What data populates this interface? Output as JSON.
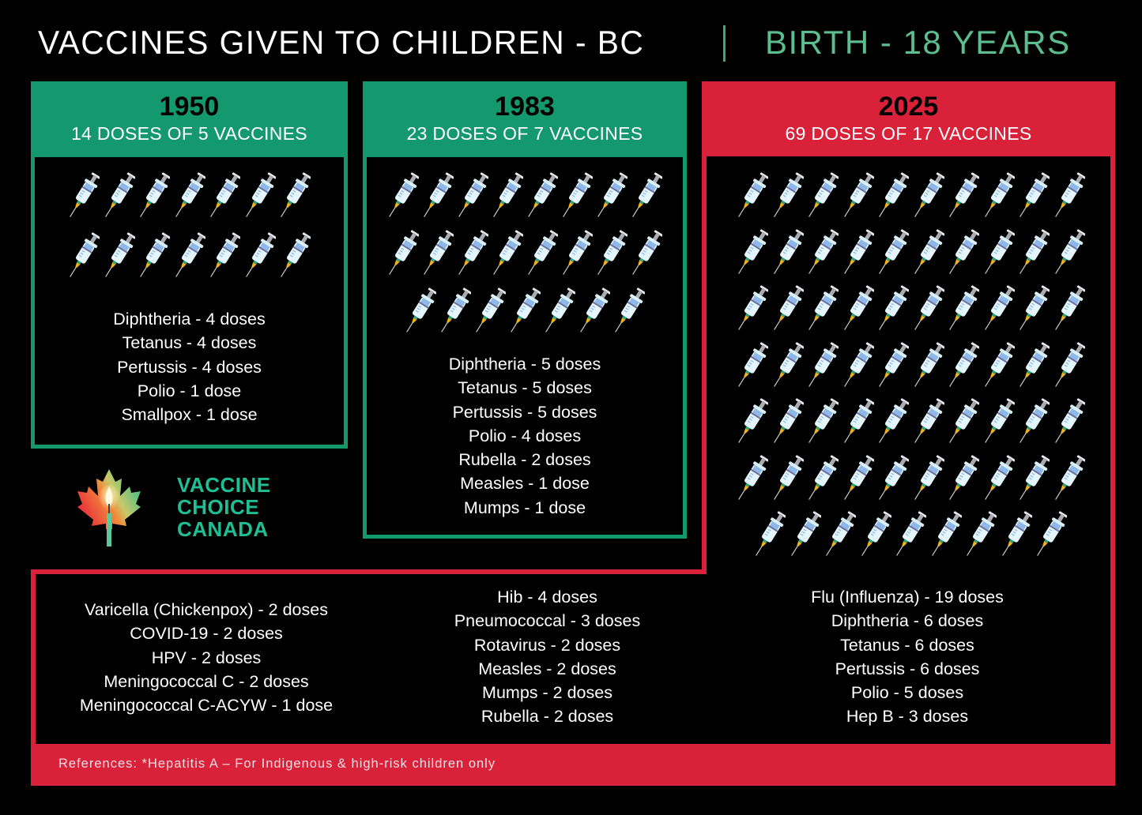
{
  "header": {
    "title": "VACCINES GIVEN TO CHILDREN - BC",
    "separator": "|",
    "subtitle": "BIRTH - 18 YEARS"
  },
  "colors": {
    "green": "#14996f",
    "red": "#d9223a",
    "subtitle_green": "#5cbd8e",
    "logo_green": "#1fbf94",
    "background": "#000000"
  },
  "chart_data": {
    "type": "table",
    "title": "VACCINES GIVEN TO CHILDREN - BC | BIRTH - 18 YEARS",
    "categories": [
      "1950",
      "1983",
      "2025"
    ],
    "series": [
      {
        "name": "Total doses",
        "values": [
          14,
          23,
          69
        ]
      },
      {
        "name": "Number of vaccines",
        "values": [
          5,
          7,
          17
        ]
      }
    ],
    "breakdown": {
      "1950": [
        {
          "vaccine": "Diphtheria",
          "doses": 4
        },
        {
          "vaccine": "Tetanus",
          "doses": 4
        },
        {
          "vaccine": "Pertussis",
          "doses": 4
        },
        {
          "vaccine": "Polio",
          "doses": 1
        },
        {
          "vaccine": "Smallpox",
          "doses": 1
        }
      ],
      "1983": [
        {
          "vaccine": "Diphtheria",
          "doses": 5
        },
        {
          "vaccine": "Tetanus",
          "doses": 5
        },
        {
          "vaccine": "Pertussis",
          "doses": 5
        },
        {
          "vaccine": "Polio",
          "doses": 4
        },
        {
          "vaccine": "Rubella",
          "doses": 2
        },
        {
          "vaccine": "Measles",
          "doses": 1
        },
        {
          "vaccine": "Mumps",
          "doses": 1
        }
      ],
      "2025": [
        {
          "vaccine": "Flu (Influenza)",
          "doses": 19
        },
        {
          "vaccine": "Diphtheria",
          "doses": 6
        },
        {
          "vaccine": "Tetanus",
          "doses": 6
        },
        {
          "vaccine": "Pertussis",
          "doses": 6
        },
        {
          "vaccine": "Polio",
          "doses": 5
        },
        {
          "vaccine": "Hep B",
          "doses": 3
        },
        {
          "vaccine": "Hib",
          "doses": 4
        },
        {
          "vaccine": "Pneumococcal",
          "doses": 3
        },
        {
          "vaccine": "Rotavirus",
          "doses": 2
        },
        {
          "vaccine": "Measles",
          "doses": 2
        },
        {
          "vaccine": "Mumps",
          "doses": 2
        },
        {
          "vaccine": "Rubella",
          "doses": 2
        },
        {
          "vaccine": "Varicella (Chickenpox)",
          "doses": 2
        },
        {
          "vaccine": "COVID-19",
          "doses": 2
        },
        {
          "vaccine": "HPV",
          "doses": 2
        },
        {
          "vaccine": "Meningococcal C",
          "doses": 2
        },
        {
          "vaccine": "Meningococcal C-ACYW",
          "doses": 1
        }
      ]
    }
  },
  "panels": {
    "p1950": {
      "year": "1950",
      "summary": "14 DOSES OF 5 VACCINES",
      "syringe_rows": [
        7,
        7
      ],
      "items": [
        "Diphtheria - 4 doses",
        "Tetanus - 4 doses",
        "Pertussis - 4 doses",
        "Polio - 1 dose",
        "Smallpox - 1 dose"
      ]
    },
    "p1983": {
      "year": "1983",
      "summary": "23 DOSES OF 7 VACCINES",
      "syringe_rows": [
        8,
        8,
        7
      ],
      "items": [
        "Diphtheria - 5 doses",
        "Tetanus - 5 doses",
        "Pertussis - 5 doses",
        "Polio - 4 doses",
        "Rubella - 2 doses",
        "Measles - 1 dose",
        "Mumps - 1 dose"
      ]
    },
    "p2025": {
      "year": "2025",
      "summary": "69 DOSES OF 17 VACCINES",
      "syringe_rows": [
        10,
        10,
        10,
        10,
        10,
        10,
        9
      ],
      "col_left": [
        "Varicella (Chickenpox) - 2 doses",
        "COVID-19 - 2 doses",
        "HPV - 2 doses",
        "Meningococcal C - 2 doses",
        "Meningococcal C-ACYW - 1 dose"
      ],
      "col_mid": [
        "Hib - 4 doses",
        "Pneumococcal - 3 doses",
        "Rotavirus - 2 doses",
        "Measles - 2 doses",
        "Mumps - 2 doses",
        "Rubella - 2 doses"
      ],
      "col_right": [
        "Flu (Influenza) - 19 doses",
        "Diphtheria - 6 doses",
        "Tetanus - 6 doses",
        "Pertussis - 6 doses",
        "Polio - 5 doses",
        "Hep B - 3 doses"
      ]
    }
  },
  "logo": {
    "line1": "VACCINE",
    "line2": "CHOICE",
    "line3": "CANADA",
    "icon": "maple-leaf-candle-icon"
  },
  "footer": {
    "references": "References: *Hepatitis A – For Indigenous & high-risk children only"
  }
}
